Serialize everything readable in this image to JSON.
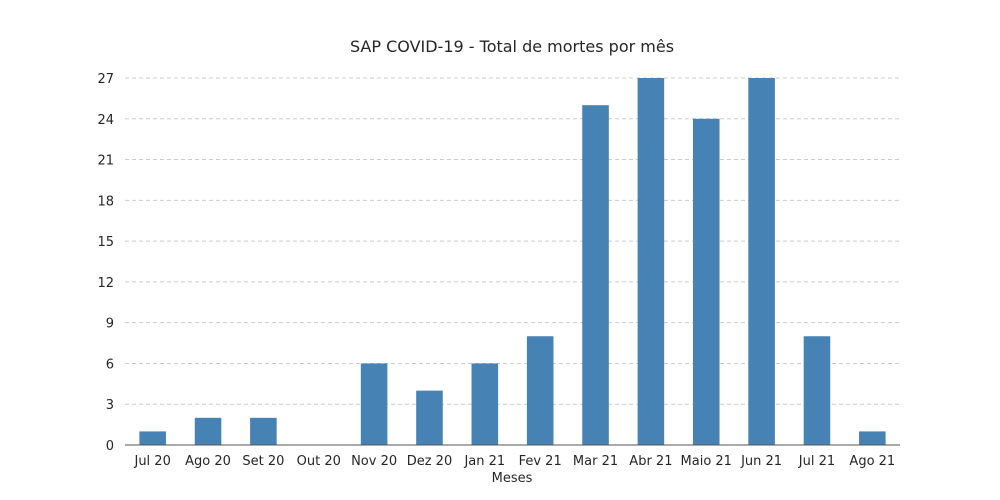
{
  "chart_data": {
    "type": "bar",
    "title": "SAP COVID-19 - Total de mortes por mês",
    "xlabel": "Meses",
    "ylabel": "",
    "categories": [
      "Jul 20",
      "Ago 20",
      "Set 20",
      "Out 20",
      "Nov 20",
      "Dez 20",
      "Jan 21",
      "Fev 21",
      "Mar 21",
      "Abr 21",
      "Maio 21",
      "Jun 21",
      "Jul 21",
      "Ago 21"
    ],
    "values": [
      1,
      2,
      2,
      0,
      6,
      4,
      6,
      8,
      25,
      27,
      24,
      27,
      8,
      1
    ],
    "ylim": [
      0,
      27
    ],
    "yticks": [
      0,
      3,
      6,
      9,
      12,
      15,
      18,
      21,
      24,
      27
    ],
    "grid": true,
    "bar_color": "#4682b4"
  }
}
